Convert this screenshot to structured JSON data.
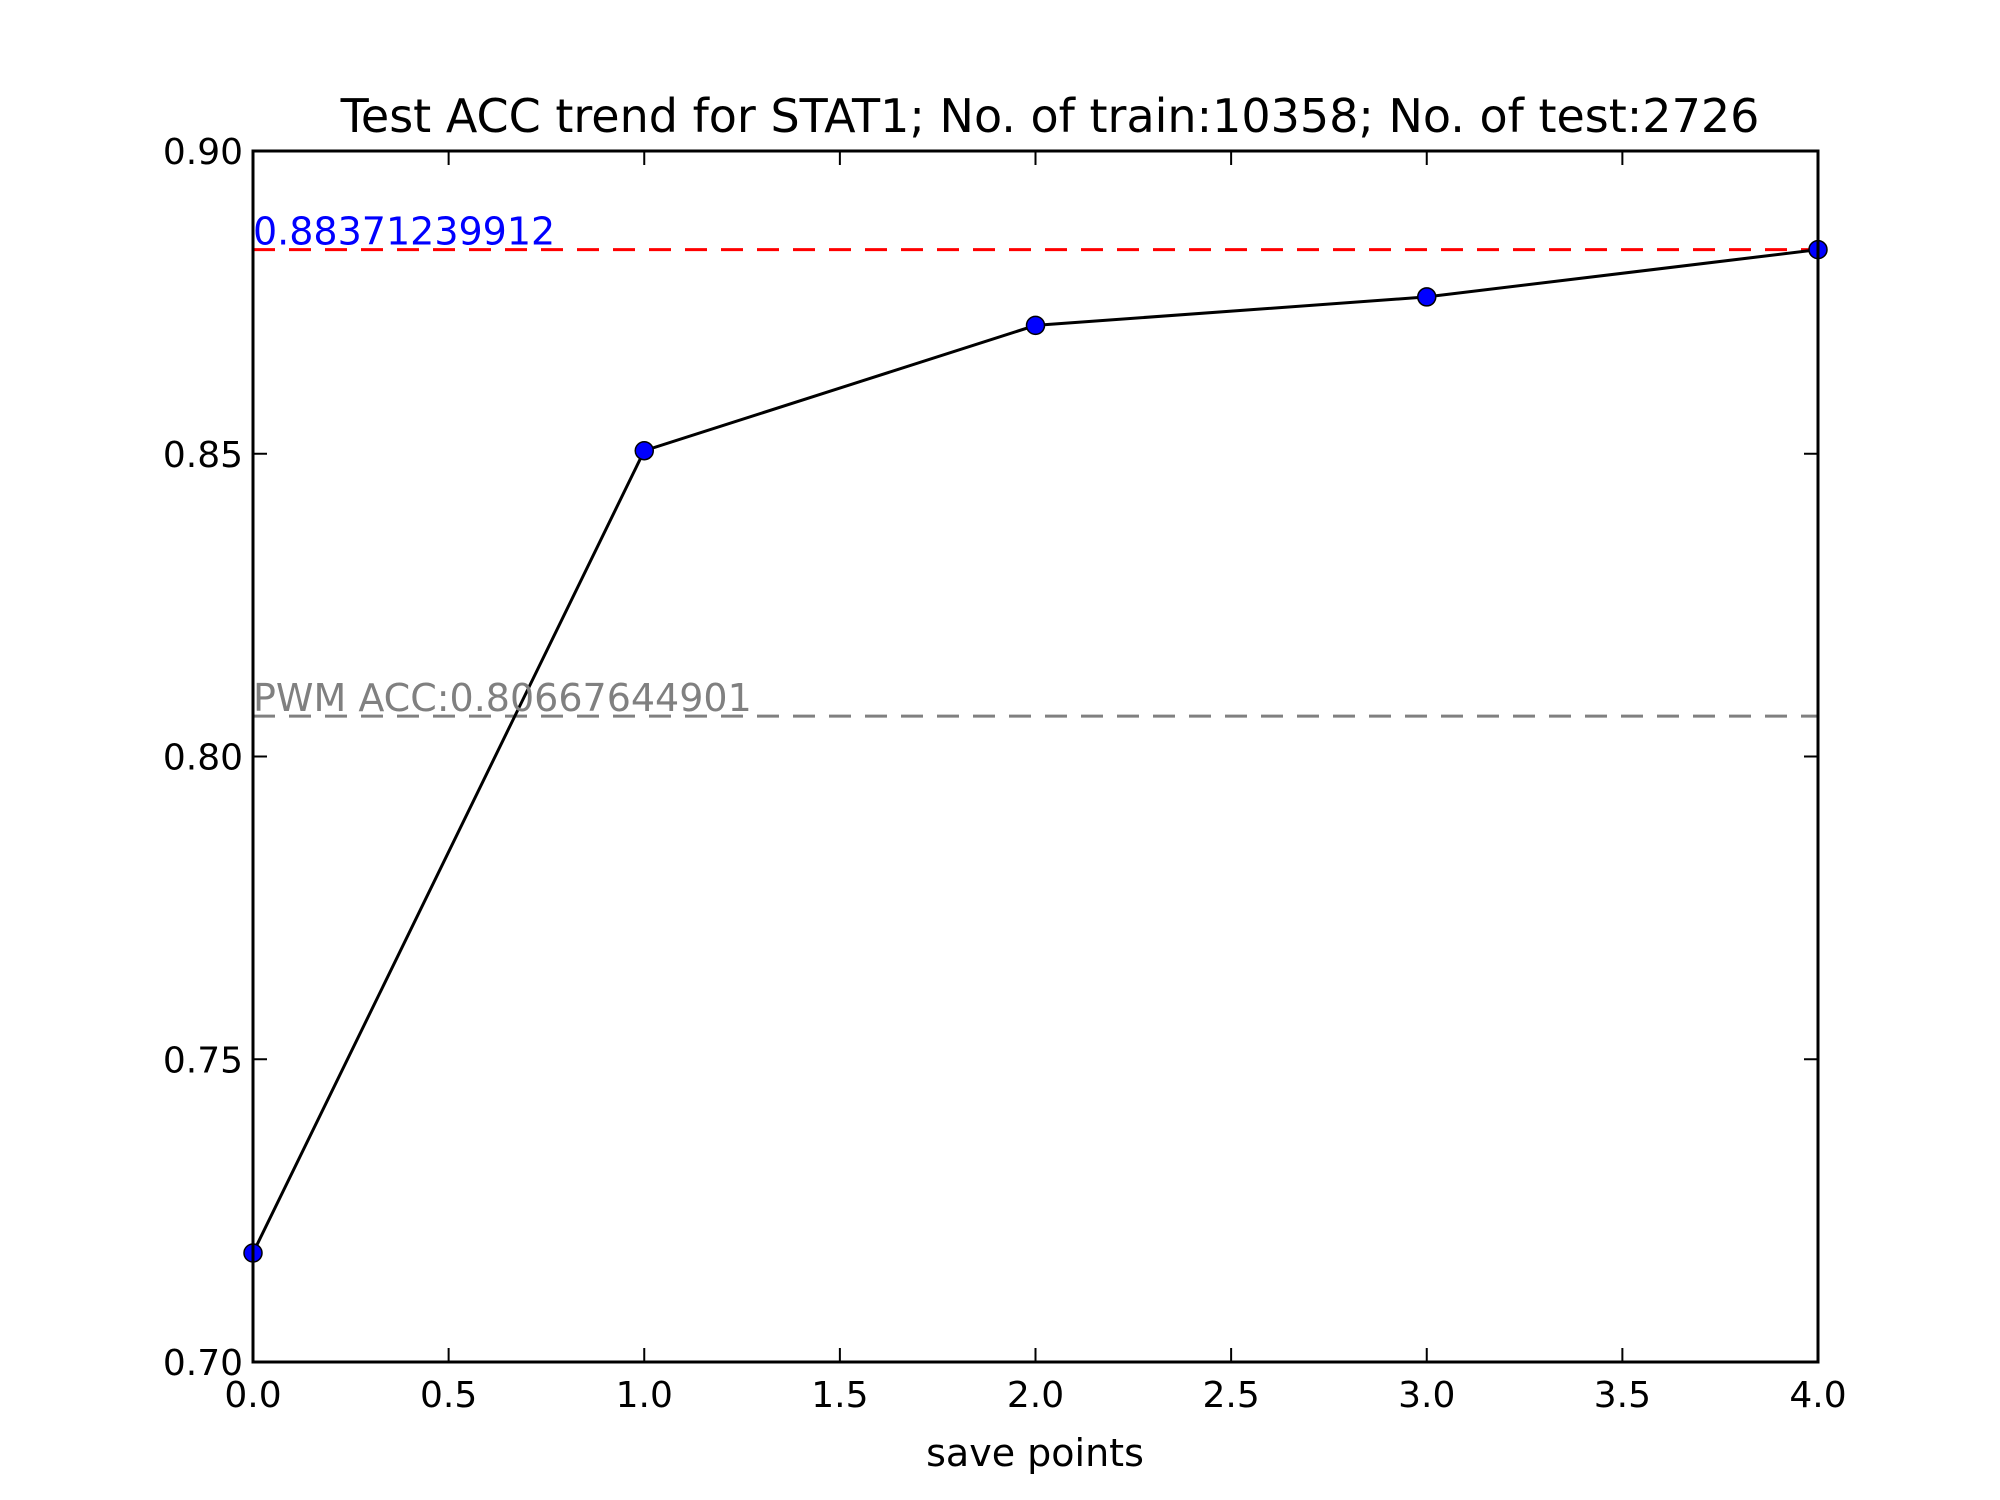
{
  "chart_data": {
    "type": "line",
    "title": "Test ACC trend for STAT1; No. of train:10358; No. of test:2726",
    "xlabel": "save points",
    "ylabel": "",
    "xlim": [
      0.0,
      4.0
    ],
    "ylim": [
      0.7,
      0.9
    ],
    "x_ticks": [
      "0.0",
      "0.5",
      "1.0",
      "1.5",
      "2.0",
      "2.5",
      "3.0",
      "3.5",
      "4.0"
    ],
    "y_ticks": [
      "0.70",
      "0.75",
      "0.80",
      "0.85",
      "0.90"
    ],
    "grid": false,
    "series": [
      {
        "x": [
          0,
          1,
          2,
          3,
          4
        ],
        "y": [
          0.718,
          0.8505,
          0.8712,
          0.8759,
          0.88371239912
        ],
        "line_color": "#000000",
        "marker_color": "#0000ff"
      }
    ],
    "reference_lines": [
      {
        "y": 0.88371239912,
        "color": "#ff0000",
        "label": "0.88371239912",
        "label_color": "#0000ff"
      },
      {
        "y": 0.80667644901,
        "color": "#808080",
        "label": "PWM ACC:0.80667644901",
        "label_color": "#808080"
      }
    ]
  }
}
